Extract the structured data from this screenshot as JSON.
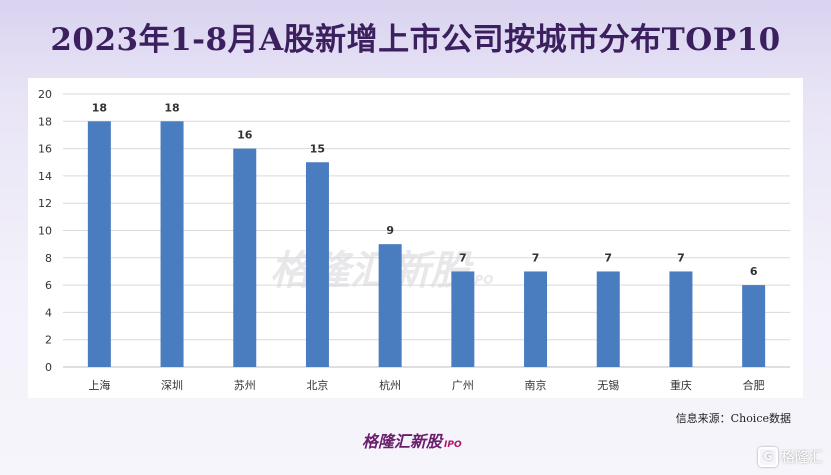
{
  "title": "2023年1-8月A股新增上市公司按城市分布TOP10",
  "source": "信息来源：Choice数据",
  "brand": {
    "main": "格隆汇新股",
    "sub": "IPO"
  },
  "watermark": {
    "main": "格隆汇新股",
    "sub": "IPO"
  },
  "corner_logo": {
    "icon": "G",
    "text": "格隆汇"
  },
  "colors": {
    "bar": "#4a7cc0",
    "title": "#3b1f5e",
    "grid": "#d9d9d9"
  },
  "chart_data": {
    "type": "bar",
    "title": "2023年1-8月A股新增上市公司按城市分布TOP10",
    "xlabel": "",
    "ylabel": "",
    "categories": [
      "上海",
      "深圳",
      "苏州",
      "北京",
      "杭州",
      "广州",
      "南京",
      "无锡",
      "重庆",
      "合肥"
    ],
    "values": [
      18,
      18,
      16,
      15,
      9,
      7,
      7,
      7,
      7,
      6
    ],
    "ylim": [
      0,
      20
    ],
    "yticks": [
      0,
      2,
      4,
      6,
      8,
      10,
      12,
      14,
      16,
      18,
      20
    ],
    "grid": true,
    "data_labels": true,
    "legend": "none"
  }
}
